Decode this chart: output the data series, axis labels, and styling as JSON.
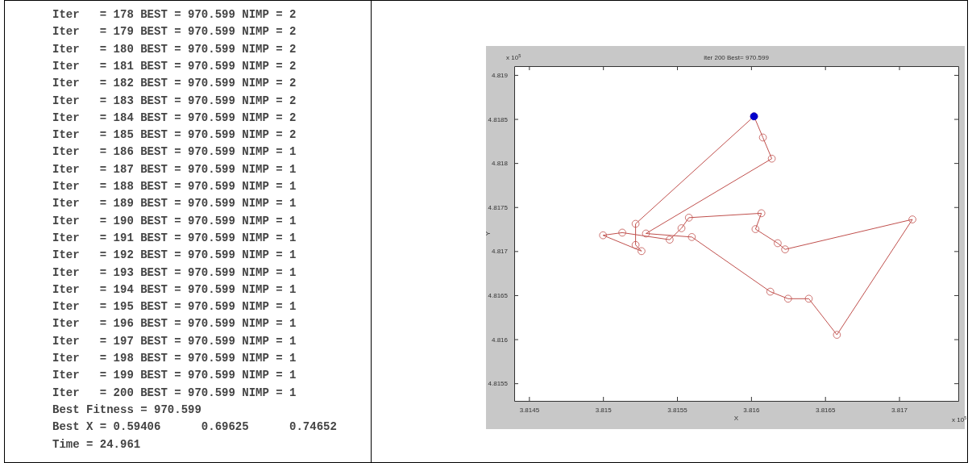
{
  "chart_data": [
    {
      "type": "other",
      "annotations": [
        "Iter   = 178 BEST = 970.599 NIMP = 2",
        "Iter   = 179 BEST = 970.599 NIMP = 2",
        "Iter   = 180 BEST = 970.599 NIMP = 2",
        "Iter   = 181 BEST = 970.599 NIMP = 2",
        "Iter   = 182 BEST = 970.599 NIMP = 2",
        "Iter   = 183 BEST = 970.599 NIMP = 2",
        "Iter   = 184 BEST = 970.599 NIMP = 2",
        "Iter   = 185 BEST = 970.599 NIMP = 2",
        "Iter   = 186 BEST = 970.599 NIMP = 1",
        "Iter   = 187 BEST = 970.599 NIMP = 1",
        "Iter   = 188 BEST = 970.599 NIMP = 1",
        "Iter   = 189 BEST = 970.599 NIMP = 1",
        "Iter   = 190 BEST = 970.599 NIMP = 1",
        "Iter   = 191 BEST = 970.599 NIMP = 1",
        "Iter   = 192 BEST = 970.599 NIMP = 1",
        "Iter   = 193 BEST = 970.599 NIMP = 1",
        "Iter   = 194 BEST = 970.599 NIMP = 1",
        "Iter   = 195 BEST = 970.599 NIMP = 1",
        "Iter   = 196 BEST = 970.599 NIMP = 1",
        "Iter   = 197 BEST = 970.599 NIMP = 1",
        "Iter   = 198 BEST = 970.599 NIMP = 1",
        "Iter   = 199 BEST = 970.599 NIMP = 1",
        "Iter   = 200 BEST = 970.599 NIMP = 1",
        "Best Fitness = 970.599",
        "Best X = 0.59406      0.69625      0.74652",
        "Time = 24.961"
      ]
    },
    {
      "type": "line",
      "title": "iter 200 Best= 970.599",
      "xlabel": "X",
      "ylabel": "Y",
      "annotations": [
        "x 10$^{5}$",
        "x 10$^{5}$"
      ],
      "xlim": [
        3.8144,
        3.8174
      ],
      "xticks": [
        3.8145,
        3.815,
        3.8155,
        3.816,
        3.8165,
        3.817
      ],
      "ylim": [
        4.8153,
        4.8191
      ],
      "yticks": [
        4.8155,
        4.816,
        4.8165,
        4.817,
        4.8175,
        4.818,
        4.8185,
        4.819
      ],
      "marker": "circle",
      "series": [
        {
          "type": "line",
          "color": "#c0504d",
          "x": [
            3.81602,
            3.81608,
            3.81614,
            3.81529,
            3.8156,
            3.81613,
            3.81625,
            3.81639,
            3.81658,
            3.81709,
            3.81623,
            3.81618,
            3.81603,
            3.81607,
            3.81558,
            3.81553,
            3.81545,
            3.81513,
            3.815,
            3.81526,
            3.81522,
            3.81522
          ],
          "values": [
            4.81853,
            4.81829,
            4.81805,
            4.8172,
            4.81716,
            4.81654,
            4.81646,
            4.81646,
            4.81605,
            4.81736,
            4.81702,
            4.81709,
            4.81725,
            4.81743,
            4.81738,
            4.81726,
            4.81713,
            4.81721,
            4.81718,
            4.817,
            4.81707,
            4.81731
          ]
        },
        {
          "type": "line",
          "marker": "none",
          "color": "#c0504d",
          "x": [
            3.81522,
            3.81602
          ],
          "values": [
            4.81731,
            4.81853
          ]
        },
        {
          "type": "scatter",
          "color": "#0000cc",
          "x": [
            3.81602
          ],
          "values": [
            4.81853
          ]
        }
      ]
    }
  ]
}
